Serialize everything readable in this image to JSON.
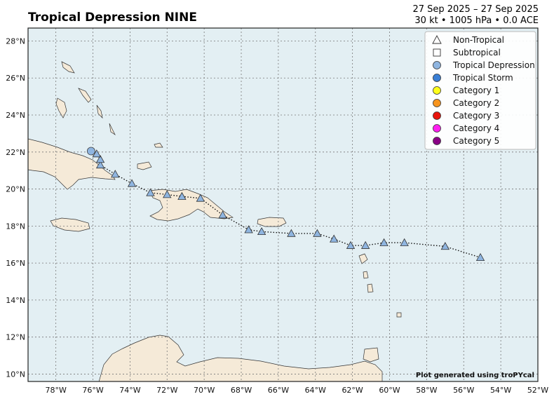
{
  "header": {
    "title": "Tropical Depression NINE",
    "date_range": "27 Sep 2025 – 27 Sep 2025",
    "stats": "30 kt • 1005 hPa • 0.0 ACE"
  },
  "credit": "Plot generated using troPYcal",
  "axes": {
    "lon_ticks": [
      "78°W",
      "76°W",
      "74°W",
      "72°W",
      "70°W",
      "68°W",
      "66°W",
      "64°W",
      "62°W",
      "60°W",
      "58°W",
      "56°W",
      "54°W",
      "52°W"
    ],
    "lat_ticks": [
      "10°N",
      "12°N",
      "14°N",
      "16°N",
      "18°N",
      "20°N",
      "22°N",
      "24°N",
      "26°N",
      "28°N"
    ],
    "lon_range": [
      -79.5,
      -52
    ],
    "lat_range": [
      9.6,
      28.7
    ]
  },
  "legend": {
    "placement": "top-right",
    "items": [
      {
        "label": "Non-Tropical",
        "marker": "triangle",
        "color": "#ffffff"
      },
      {
        "label": "Subtropical",
        "marker": "square",
        "color": "#ffffff"
      },
      {
        "label": "Tropical Depression",
        "marker": "circle",
        "color": "#8fb5e0"
      },
      {
        "label": "Tropical Storm",
        "marker": "circle",
        "color": "#3a7fd5"
      },
      {
        "label": "Category 1",
        "marker": "circle",
        "color": "#ffff1a"
      },
      {
        "label": "Category 2",
        "marker": "circle",
        "color": "#f7941d"
      },
      {
        "label": "Category 3",
        "marker": "circle",
        "color": "#e8140c"
      },
      {
        "label": "Category 4",
        "marker": "circle",
        "color": "#ff1ff0"
      },
      {
        "label": "Category 5",
        "marker": "circle",
        "color": "#8a0085"
      }
    ]
  },
  "track": {
    "color_marker": "#8fb5e0",
    "points": [
      {
        "lon": -55.1,
        "lat": 16.3,
        "type": "triangle"
      },
      {
        "lon": -57.0,
        "lat": 16.9,
        "type": "triangle"
      },
      {
        "lon": -59.2,
        "lat": 17.1,
        "type": "triangle"
      },
      {
        "lon": -60.3,
        "lat": 17.1,
        "type": "triangle"
      },
      {
        "lon": -61.3,
        "lat": 16.95,
        "type": "triangle"
      },
      {
        "lon": -62.1,
        "lat": 16.95,
        "type": "triangle"
      },
      {
        "lon": -63.0,
        "lat": 17.3,
        "type": "triangle"
      },
      {
        "lon": -63.9,
        "lat": 17.6,
        "type": "triangle"
      },
      {
        "lon": -65.3,
        "lat": 17.6,
        "type": "triangle"
      },
      {
        "lon": -66.9,
        "lat": 17.7,
        "type": "triangle"
      },
      {
        "lon": -67.6,
        "lat": 17.8,
        "type": "triangle"
      },
      {
        "lon": -69.0,
        "lat": 18.6,
        "type": "triangle"
      },
      {
        "lon": -70.2,
        "lat": 19.5,
        "type": "triangle"
      },
      {
        "lon": -71.2,
        "lat": 19.6,
        "type": "triangle"
      },
      {
        "lon": -72.0,
        "lat": 19.7,
        "type": "triangle"
      },
      {
        "lon": -72.9,
        "lat": 19.8,
        "type": "triangle"
      },
      {
        "lon": -73.9,
        "lat": 20.3,
        "type": "triangle"
      },
      {
        "lon": -74.8,
        "lat": 20.8,
        "type": "triangle"
      },
      {
        "lon": -75.6,
        "lat": 21.3,
        "type": "triangle"
      },
      {
        "lon": -75.6,
        "lat": 21.6,
        "type": "triangle"
      },
      {
        "lon": -75.8,
        "lat": 21.9,
        "type": "triangle"
      },
      {
        "lon": -76.1,
        "lat": 22.05,
        "type": "circle"
      }
    ]
  }
}
